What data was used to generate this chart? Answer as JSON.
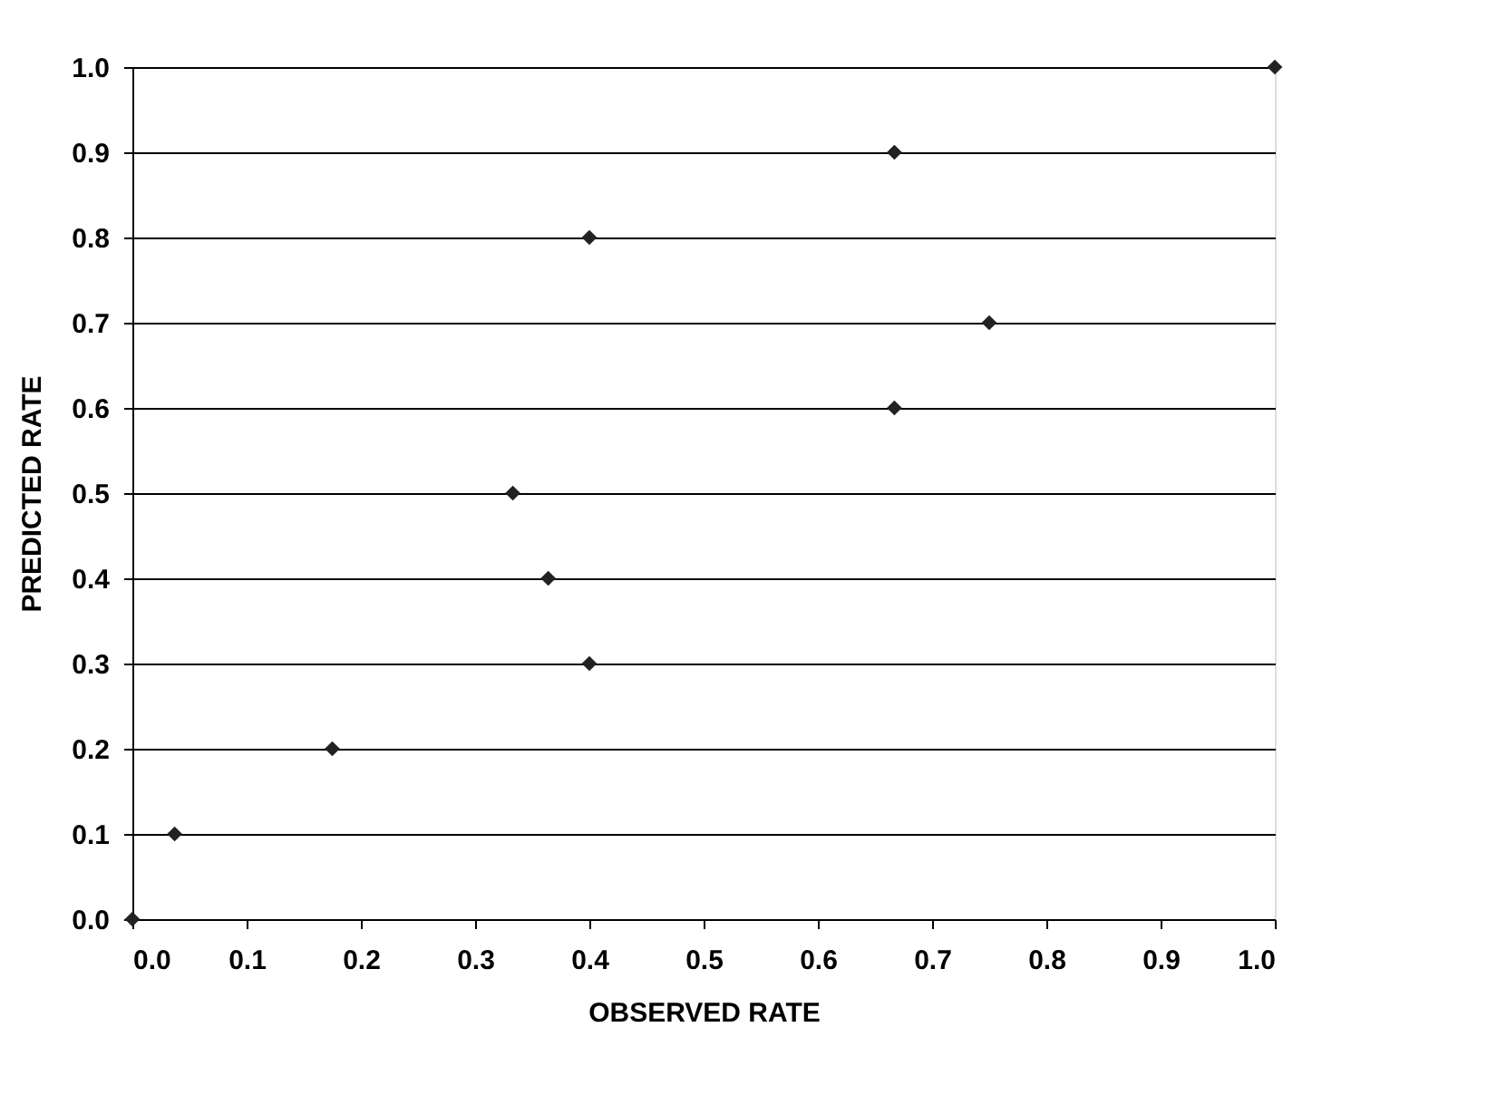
{
  "chart_data": {
    "type": "scatter",
    "xlabel": "OBSERVED RATE",
    "ylabel": "PREDICTED RATE",
    "x": [
      0.0,
      0.037,
      0.175,
      0.4,
      0.364,
      0.333,
      0.667,
      0.75,
      0.4,
      0.667,
      1.0
    ],
    "series": [
      {
        "color": "#222222",
        "values": [
          0.0,
          0.1,
          0.2,
          0.3,
          0.4,
          0.5,
          0.6,
          0.7,
          0.8,
          0.9,
          1.0
        ]
      }
    ],
    "xlim": [
      0.0,
      1.0
    ],
    "ylim": [
      0.0,
      1.0
    ],
    "xticks": [
      {
        "value": 0,
        "label": "0.0"
      },
      0.1,
      0.2,
      0.3,
      0.4,
      0.5,
      0.6,
      0.7,
      0.8,
      0.9,
      {
        "value": 1,
        "label": "1.0"
      }
    ],
    "yticks": [
      {
        "value": 0,
        "label": "0.0"
      },
      0.1,
      0.2,
      0.3,
      0.4,
      0.5,
      0.6,
      0.7,
      0.8,
      0.9,
      {
        "value": 1,
        "label": "1.0"
      }
    ],
    "grid": "y",
    "marker": "diamond"
  }
}
